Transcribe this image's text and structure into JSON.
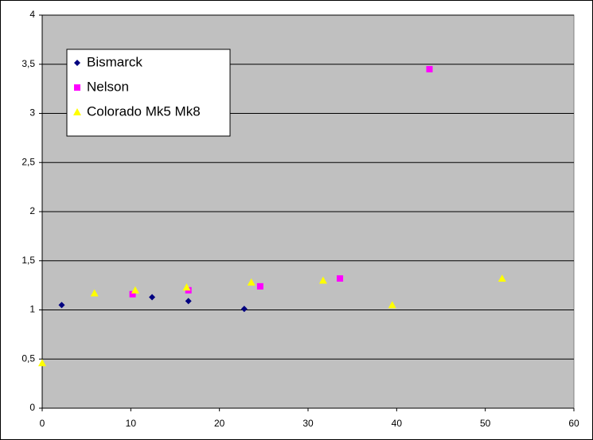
{
  "chart_data": {
    "type": "scatter",
    "xlim": [
      0,
      60
    ],
    "xticks": [
      0,
      10,
      20,
      30,
      40,
      50,
      60
    ],
    "ylim": [
      0,
      4
    ],
    "yticks": [
      0,
      {
        "value": 0.5,
        "label": "0,5"
      },
      1,
      {
        "value": 1.5,
        "label": "1,5"
      },
      2,
      {
        "value": 2.5,
        "label": "2,5"
      },
      3,
      {
        "value": 3.5,
        "label": "3,5"
      },
      4
    ],
    "grid": true,
    "legend": "upper left",
    "series": [
      {
        "name": "Bismarck",
        "color": "#000080",
        "marker": "diamond",
        "x": [
          2.2,
          12.4,
          16.5,
          22.8
        ],
        "values": [
          1.05,
          1.13,
          1.09,
          1.01
        ]
      },
      {
        "name": "Nelson",
        "color": "#ff00ff",
        "marker": "square",
        "x": [
          10.2,
          16.5,
          24.6,
          33.6,
          43.7
        ],
        "values": [
          1.16,
          1.2,
          1.24,
          1.32,
          3.45
        ]
      },
      {
        "name": "Colorado Mk5 Mk8",
        "color": "#ffff00",
        "marker": "triangle",
        "x": [
          0,
          5.9,
          10.5,
          16.3,
          23.6,
          31.7,
          39.5,
          51.9
        ],
        "values": [
          0.46,
          1.17,
          1.2,
          1.23,
          1.28,
          1.3,
          1.05,
          1.32
        ]
      }
    ]
  }
}
